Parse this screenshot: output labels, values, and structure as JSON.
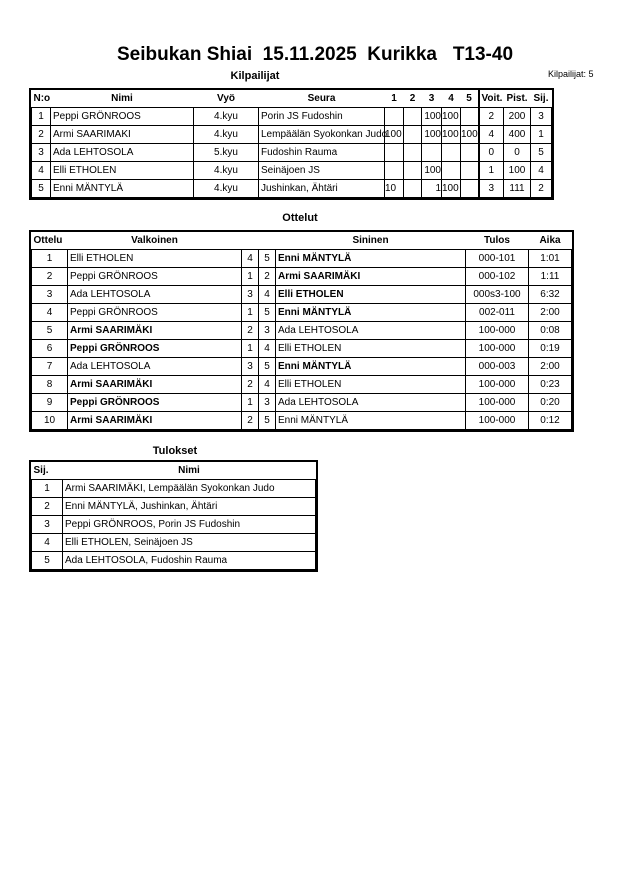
{
  "title": "Seibukan Shiai  15.11.2025  Kurikka   T13-40",
  "competitors_section": {
    "title": "Kilpailijat",
    "count_label": "Kilpailijat: 5",
    "headers": [
      "N:o",
      "Nimi",
      "Vyö",
      "Seura",
      "1",
      "2",
      "3",
      "4",
      "5",
      "Voit.",
      "Pist.",
      "Sij."
    ],
    "rows": [
      [
        "1",
        "Peppi GRÖNROOS",
        "4.kyu",
        "Porin JS Fudoshin",
        "",
        "",
        "100",
        "100",
        "",
        "2",
        "200",
        "3"
      ],
      [
        "2",
        "Armi SAARIMAKI",
        "4.kyu",
        "Lempäälän Syokonkan Judo",
        "100",
        "",
        "100",
        "100",
        "100",
        "4",
        "400",
        "1"
      ],
      [
        "3",
        "Ada LEHTOSOLA",
        "5.kyu",
        "Fudoshin Rauma",
        "",
        "",
        "",
        "",
        "",
        "0",
        "0",
        "5"
      ],
      [
        "4",
        "Elli ETHOLEN",
        "4.kyu",
        "Seinäjoen JS",
        "",
        "",
        "100",
        "",
        "",
        "1",
        "100",
        "4"
      ],
      [
        "5",
        "Enni MÄNTYLÄ",
        "4.kyu",
        "Jushinkan, Ähtäri",
        "10",
        "",
        "1",
        "100",
        "",
        "3",
        "111",
        "2"
      ]
    ]
  },
  "matches_section": {
    "title": "Ottelut",
    "headers": [
      "Ottelu",
      "Valkoinen",
      "",
      "",
      "Sininen",
      "Tulos",
      "Aika"
    ],
    "rows": [
      {
        "no": "1",
        "white": "Elli ETHOLEN",
        "wn": "4",
        "bn": "5",
        "blue": "Enni MÄNTYLÄ",
        "result": "000-101",
        "time": "1:01",
        "winner": "blue"
      },
      {
        "no": "2",
        "white": "Peppi GRÖNROOS",
        "wn": "1",
        "bn": "2",
        "blue": "Armi SAARIMÄKI",
        "result": "000-102",
        "time": "1:11",
        "winner": "blue"
      },
      {
        "no": "3",
        "white": "Ada LEHTOSOLA",
        "wn": "3",
        "bn": "4",
        "blue": "Elli ETHOLEN",
        "result": "000s3-100",
        "time": "6:32",
        "winner": "blue"
      },
      {
        "no": "4",
        "white": "Peppi GRÖNROOS",
        "wn": "1",
        "bn": "5",
        "blue": "Enni MÄNTYLÄ",
        "result": "002-011",
        "time": "2:00",
        "winner": "blue"
      },
      {
        "no": "5",
        "white": "Armi SAARIMÄKI",
        "wn": "2",
        "bn": "3",
        "blue": "Ada LEHTOSOLA",
        "result": "100-000",
        "time": "0:08",
        "winner": "white"
      },
      {
        "no": "6",
        "white": "Peppi GRÖNROOS",
        "wn": "1",
        "bn": "4",
        "blue": "Elli ETHOLEN",
        "result": "100-000",
        "time": "0:19",
        "winner": "white"
      },
      {
        "no": "7",
        "white": "Ada LEHTOSOLA",
        "wn": "3",
        "bn": "5",
        "blue": "Enni MÄNTYLÄ",
        "result": "000-003",
        "time": "2:00",
        "winner": "blue"
      },
      {
        "no": "8",
        "white": "Armi SAARIMÄKI",
        "wn": "2",
        "bn": "4",
        "blue": "Elli ETHOLEN",
        "result": "100-000",
        "time": "0:23",
        "winner": "white"
      },
      {
        "no": "9",
        "white": "Peppi GRÖNROOS",
        "wn": "1",
        "bn": "3",
        "blue": "Ada LEHTOSOLA",
        "result": "100-000",
        "time": "0:20",
        "winner": "white"
      },
      {
        "no": "10",
        "white": "Armi SAARIMÄKI",
        "wn": "2",
        "bn": "5",
        "blue": "Enni MÄNTYLÄ",
        "result": "100-000",
        "time": "0:12",
        "winner": "white"
      }
    ]
  },
  "results_section": {
    "title": "Tulokset",
    "headers": [
      "Sij.",
      "Nimi"
    ],
    "rows": [
      [
        "1",
        "Armi SAARIMÄKI, Lempäälän Syokonkan Judo"
      ],
      [
        "2",
        "Enni MÄNTYLÄ, Jushinkan, Ähtäri"
      ],
      [
        "3",
        "Peppi GRÖNROOS, Porin JS Fudoshin"
      ],
      [
        "4",
        "Elli ETHOLEN, Seinäjoen JS"
      ],
      [
        "5",
        "Ada LEHTOSOLA, Fudoshin Rauma"
      ]
    ]
  }
}
